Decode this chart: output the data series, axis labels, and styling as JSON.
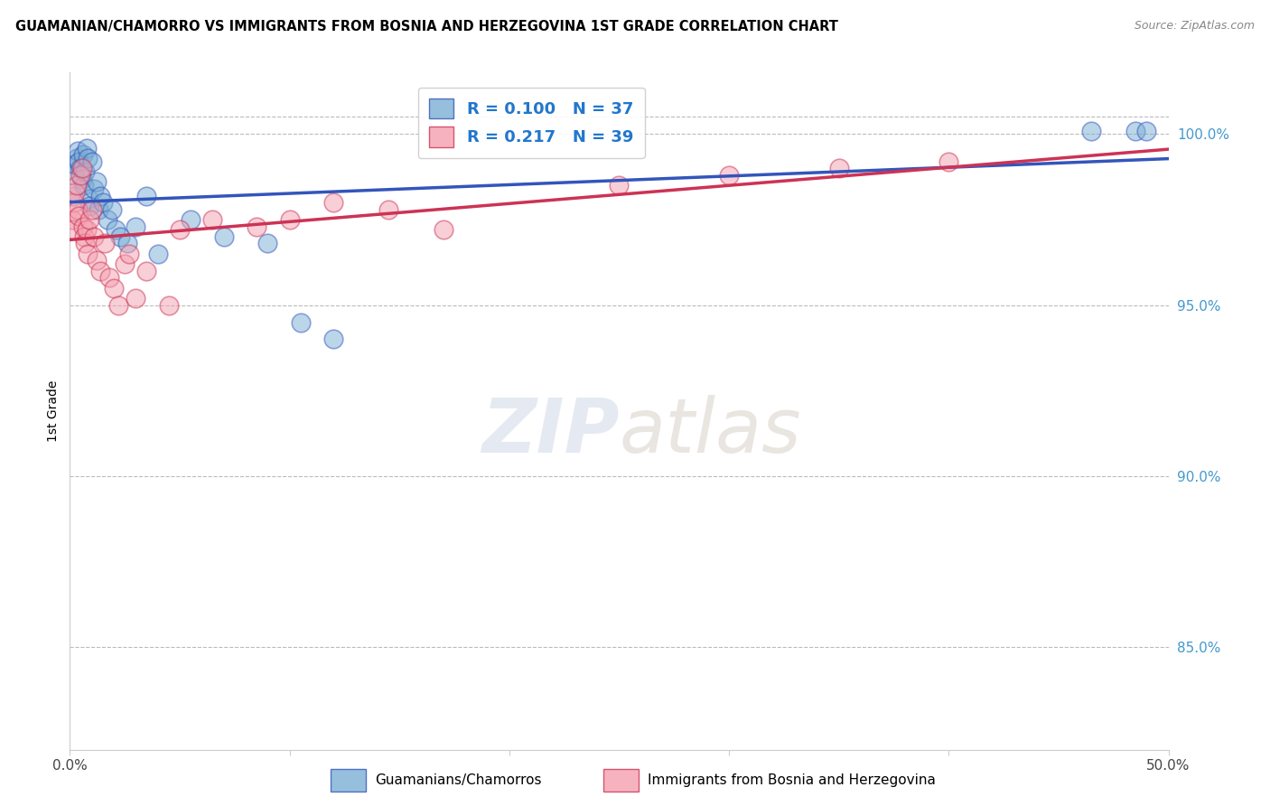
{
  "title": "GUAMANIAN/CHAMORRO VS IMMIGRANTS FROM BOSNIA AND HERZEGOVINA 1ST GRADE CORRELATION CHART",
  "source": "Source: ZipAtlas.com",
  "ylabel": "1st Grade",
  "legend_label1": "Guamanians/Chamorros",
  "legend_label2": "Immigrants from Bosnia and Herzegovina",
  "R1": 0.1,
  "N1": 37,
  "R2": 0.217,
  "N2": 39,
  "color1": "#7bafd4",
  "color2": "#f4a0b0",
  "trend_color1": "#3355bb",
  "trend_color2": "#cc3355",
  "xmin": 0.0,
  "xmax": 50.0,
  "ymin": 82.0,
  "ymax": 101.8,
  "yticks": [
    85.0,
    90.0,
    95.0,
    100.0
  ],
  "blue_x": [
    0.15,
    0.2,
    0.25,
    0.3,
    0.35,
    0.4,
    0.5,
    0.55,
    0.6,
    0.65,
    0.7,
    0.75,
    0.8,
    0.85,
    0.9,
    1.0,
    1.1,
    1.2,
    1.3,
    1.4,
    1.5,
    1.7,
    1.9,
    2.1,
    2.3,
    2.6,
    3.0,
    3.5,
    4.0,
    5.5,
    7.0,
    9.0,
    10.5,
    12.0,
    46.5,
    48.5,
    49.0
  ],
  "blue_y": [
    98.2,
    98.8,
    99.1,
    99.3,
    99.5,
    99.2,
    99.0,
    98.7,
    99.4,
    98.5,
    98.9,
    99.6,
    99.3,
    98.1,
    97.9,
    99.2,
    98.4,
    98.6,
    97.8,
    98.2,
    98.0,
    97.5,
    97.8,
    97.2,
    97.0,
    96.8,
    97.3,
    98.2,
    96.5,
    97.5,
    97.0,
    96.8,
    94.5,
    94.0,
    100.1,
    100.1,
    100.1
  ],
  "pink_x": [
    0.1,
    0.15,
    0.2,
    0.25,
    0.3,
    0.35,
    0.4,
    0.5,
    0.55,
    0.6,
    0.65,
    0.7,
    0.75,
    0.8,
    0.9,
    1.0,
    1.1,
    1.2,
    1.4,
    1.6,
    1.8,
    2.0,
    2.2,
    2.5,
    2.7,
    3.0,
    3.5,
    4.5,
    5.0,
    6.5,
    8.5,
    10.0,
    12.0,
    14.5,
    17.0,
    25.0,
    30.0,
    35.0,
    40.0
  ],
  "pink_y": [
    97.5,
    97.2,
    98.0,
    98.3,
    98.5,
    97.8,
    97.6,
    98.8,
    99.0,
    97.3,
    97.0,
    96.8,
    97.2,
    96.5,
    97.5,
    97.8,
    97.0,
    96.3,
    96.0,
    96.8,
    95.8,
    95.5,
    95.0,
    96.2,
    96.5,
    95.2,
    96.0,
    95.0,
    97.2,
    97.5,
    97.3,
    97.5,
    98.0,
    97.8,
    97.2,
    98.5,
    98.8,
    99.0,
    99.2
  ]
}
